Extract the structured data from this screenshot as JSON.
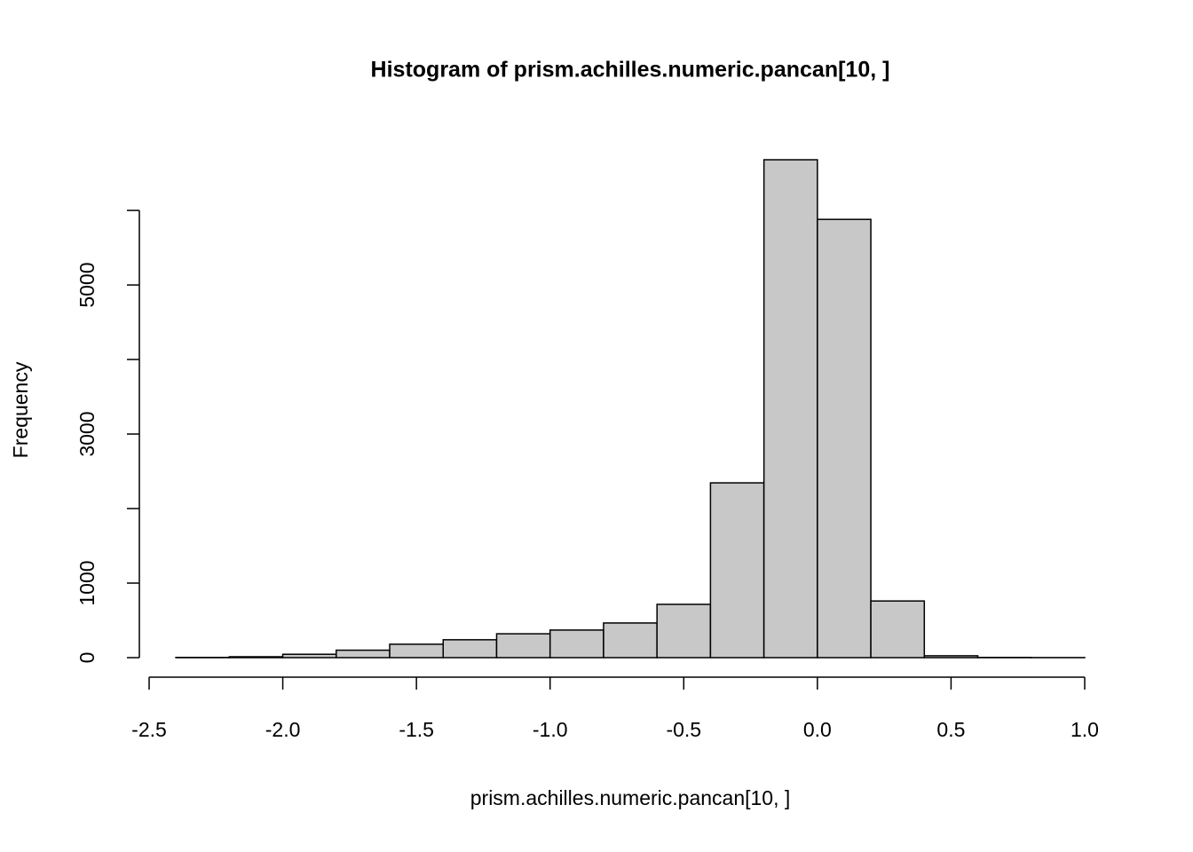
{
  "chart_data": {
    "type": "histogram",
    "title": "Histogram of prism.achilles.numeric.pancan[10, ]",
    "x_label": "prism.achilles.numeric.pancan[10, ]",
    "y_label": "Frequency",
    "bins": [
      -2.4,
      -2.2,
      -2.0,
      -1.8,
      -1.6,
      -1.4,
      -1.2,
      -1.0,
      -0.8,
      -0.6,
      -0.4,
      -0.2,
      0,
      0.2,
      0.4,
      0.6,
      0.8,
      1.0
    ],
    "values": [
      3,
      12,
      45,
      100,
      180,
      240,
      320,
      370,
      465,
      715,
      2345,
      6680,
      5880,
      760,
      25,
      3,
      1
    ],
    "color": "#c8c8c8",
    "xlim": [
      -2.5,
      1.0
    ],
    "xticks": [
      -2.5,
      {
        "value": -2.0,
        "label": "-2.0"
      },
      -1.5,
      {
        "value": -1.0,
        "label": "-1.0"
      },
      -0.5,
      {
        "value": 0,
        "label": "0.0"
      },
      0.5,
      {
        "value": 1.0,
        "label": "1.0"
      }
    ],
    "ylim": [
      0,
      6680
    ],
    "yticks": [
      0,
      1000,
      3000,
      5000
    ],
    "yticks_unlabeled": [
      2000,
      4000,
      6000
    ],
    "grid": false
  }
}
